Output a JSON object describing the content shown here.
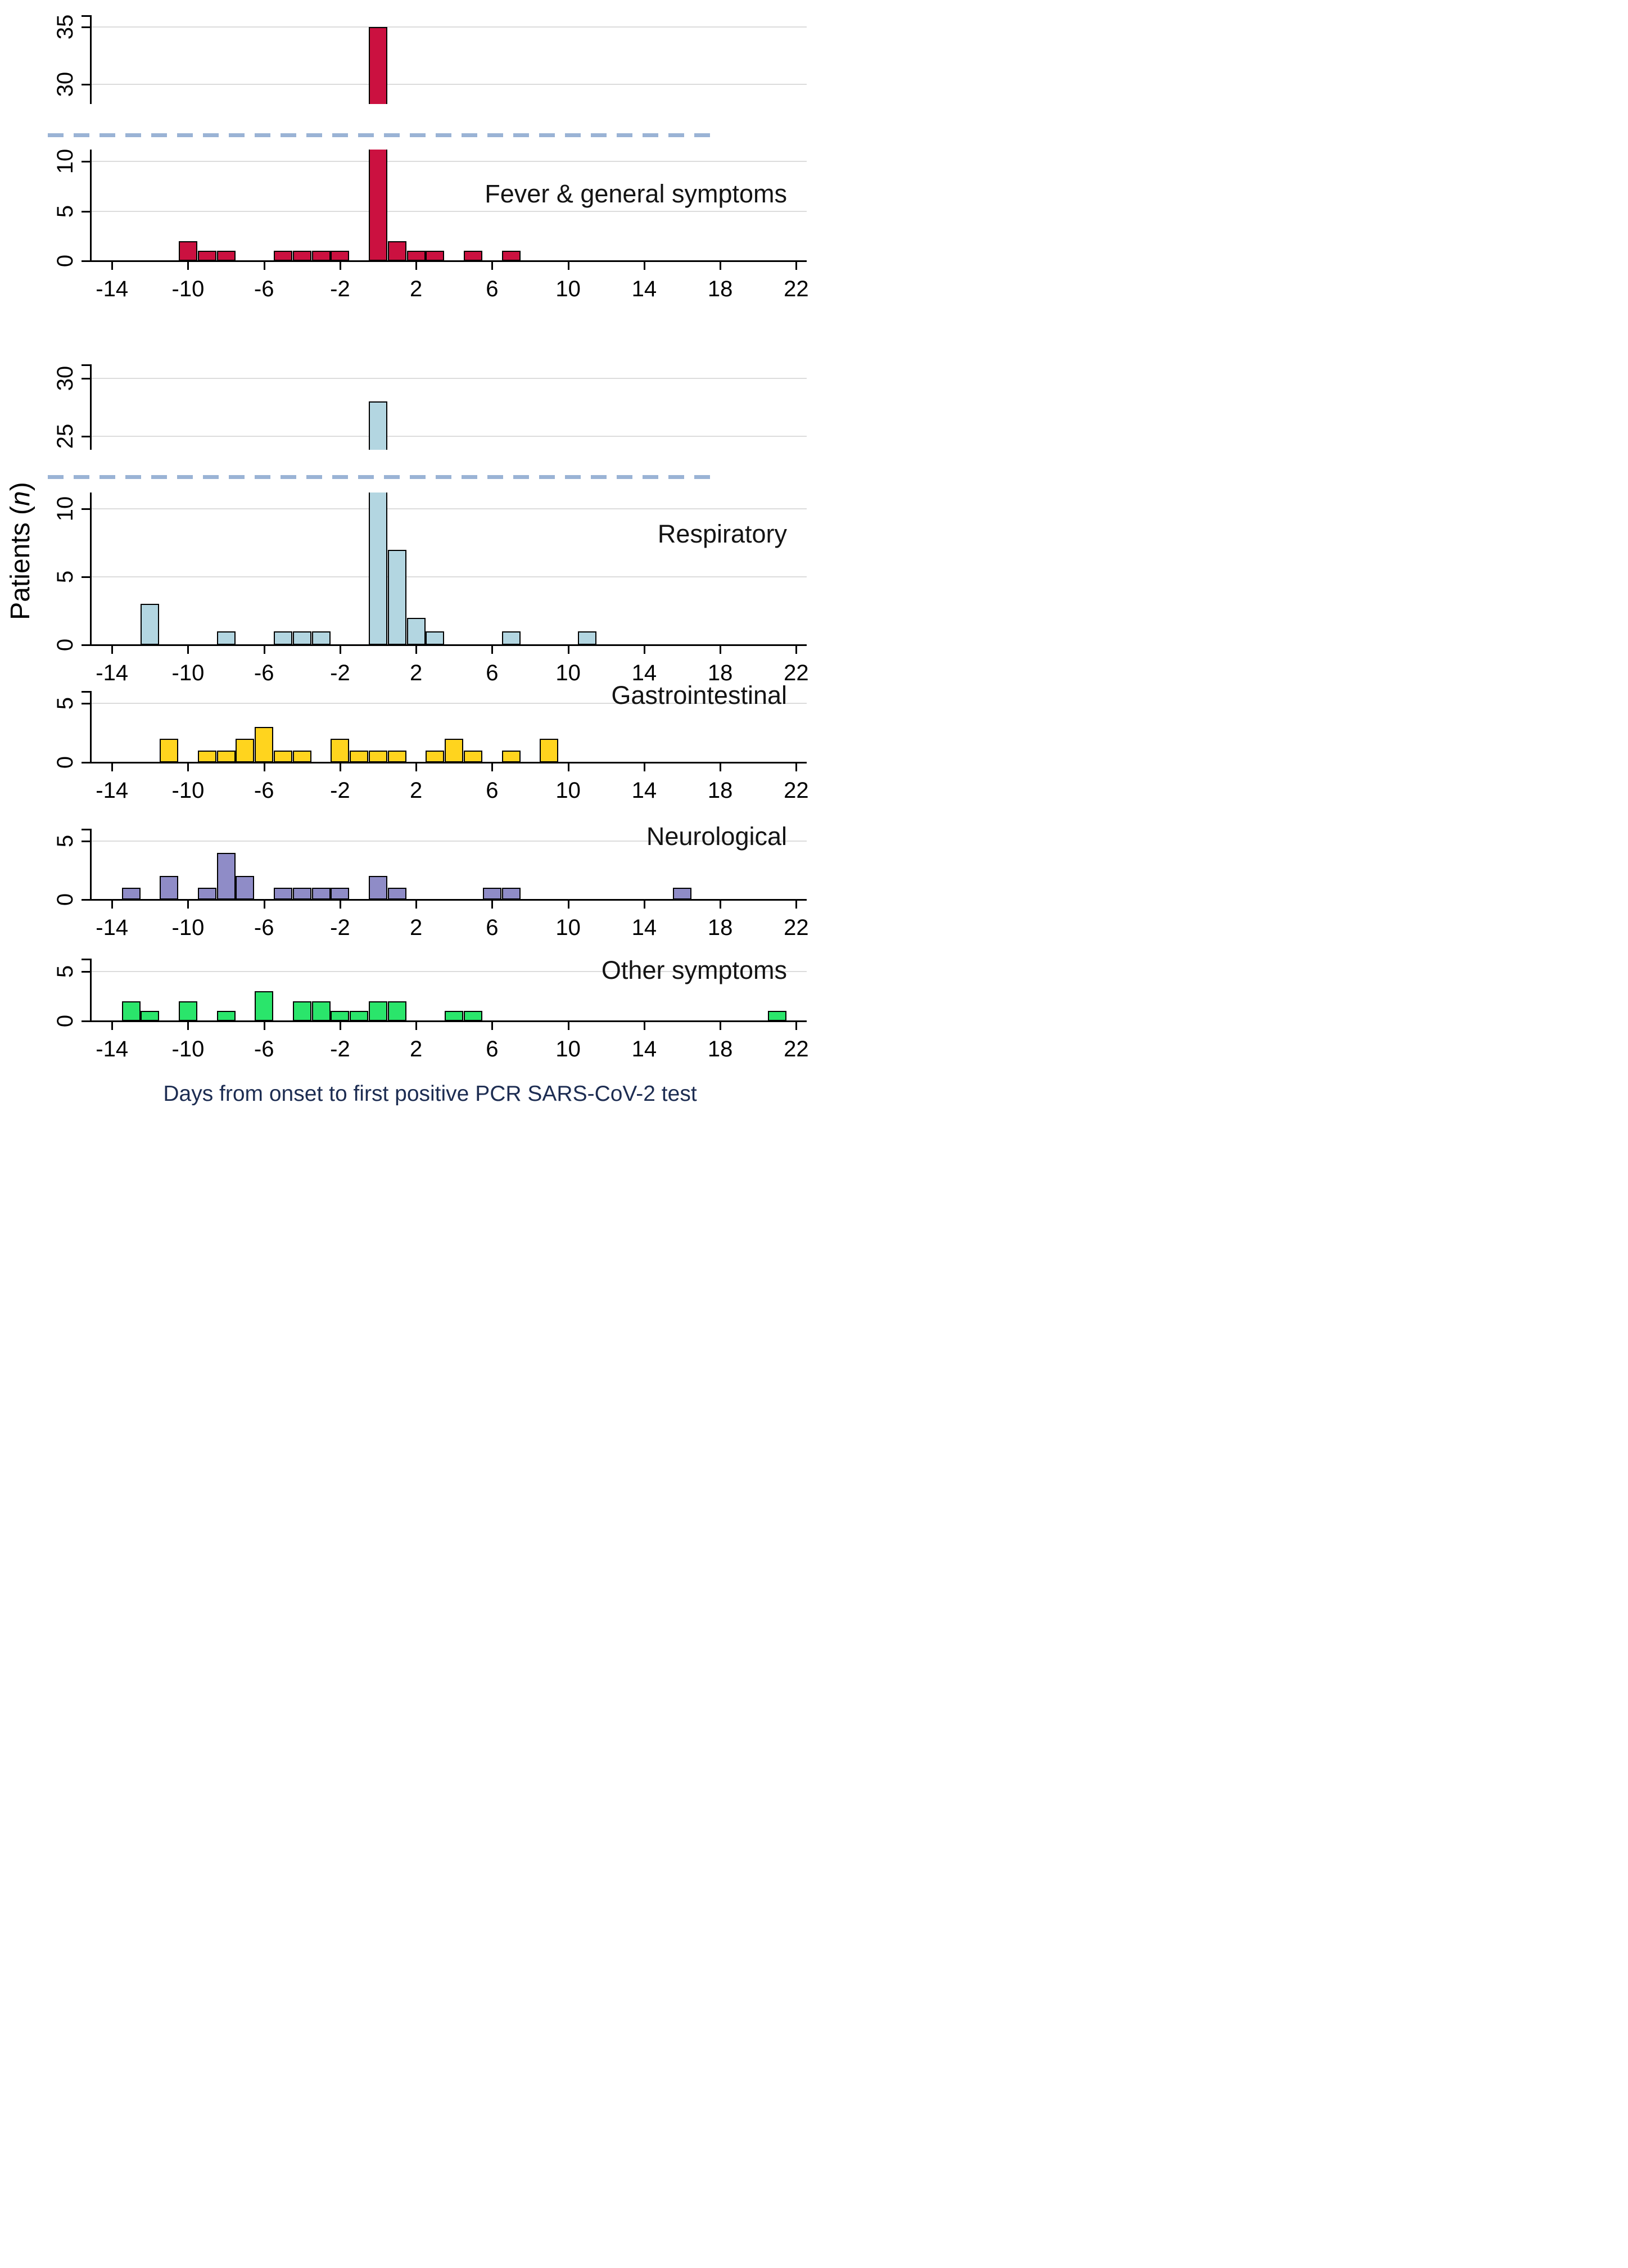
{
  "figure": {
    "y_axis_title": {
      "prefix": "Patients (",
      "italic": "n",
      "suffix": ")"
    },
    "x_axis_title": "Days from onset to first positive PCR SARS-CoV-2 test",
    "x_ticks": [
      -14,
      -10,
      -6,
      -2,
      2,
      6,
      10,
      14,
      18,
      22
    ],
    "colors": {
      "axis_break_dash": "#9ab3d5",
      "gridline": "#dcdcdc",
      "axis": "#000000",
      "x_axis_title_text": "#1d2d52",
      "background": "#ffffff"
    }
  },
  "chart_data": [
    {
      "type": "bar",
      "title": "Fever & general symptoms",
      "color": "#cb1140",
      "x": [
        -10,
        -9,
        -8,
        -5,
        -4,
        -3,
        -2,
        0,
        1,
        2,
        3,
        5,
        7
      ],
      "values": [
        2,
        1,
        1,
        1,
        1,
        1,
        1,
        35,
        2,
        1,
        1,
        1,
        1
      ],
      "broken_axis": true,
      "upper_yticks": [
        30,
        35
      ],
      "lower_yticks": [
        0,
        5,
        10
      ],
      "xlim": [
        -15.1,
        22.55
      ]
    },
    {
      "type": "bar",
      "title": "Respiratory",
      "color": "#b3d6e1",
      "x": [
        -12,
        -8,
        -5,
        -4,
        -3,
        0,
        1,
        2,
        3,
        7,
        11
      ],
      "values": [
        3,
        1,
        1,
        1,
        1,
        28,
        7,
        2,
        1,
        1,
        1
      ],
      "broken_axis": true,
      "upper_yticks": [
        25,
        30
      ],
      "lower_yticks": [
        0,
        5,
        10
      ],
      "xlim": [
        -15.1,
        22.55
      ]
    },
    {
      "type": "bar",
      "title": "Gastrointestinal",
      "color": "#ffd41e",
      "x": [
        -11,
        -9,
        -8,
        -7,
        -6,
        -5,
        -4,
        -2,
        -1,
        0,
        1,
        3,
        4,
        5,
        7,
        9
      ],
      "values": [
        2,
        1,
        1,
        2,
        3,
        1,
        1,
        2,
        1,
        1,
        1,
        1,
        2,
        1,
        1,
        2
      ],
      "broken_axis": false,
      "yticks": [
        0,
        5
      ],
      "xlim": [
        -15.1,
        22.55
      ]
    },
    {
      "type": "bar",
      "title": "Neurological",
      "color": "#8f8cc7",
      "x": [
        -13,
        -11,
        -9,
        -8,
        -7,
        -5,
        -4,
        -3,
        -2,
        0,
        1,
        6,
        7,
        16
      ],
      "values": [
        1,
        2,
        1,
        4,
        2,
        1,
        1,
        1,
        1,
        2,
        1,
        1,
        1,
        1
      ],
      "broken_axis": false,
      "yticks": [
        0,
        5
      ],
      "xlim": [
        -15.1,
        22.55
      ]
    },
    {
      "type": "bar",
      "title": "Other symptoms",
      "color": "#2ae56b",
      "x": [
        -13,
        -12,
        -10,
        -8,
        -6,
        -4,
        -3,
        -2,
        -1,
        0,
        1,
        4,
        5,
        21
      ],
      "values": [
        2,
        1,
        2,
        1,
        3,
        2,
        2,
        1,
        1,
        2,
        2,
        1,
        1,
        1
      ],
      "broken_axis": false,
      "yticks": [
        0,
        5
      ],
      "xlim": [
        -15.1,
        22.55
      ]
    }
  ]
}
